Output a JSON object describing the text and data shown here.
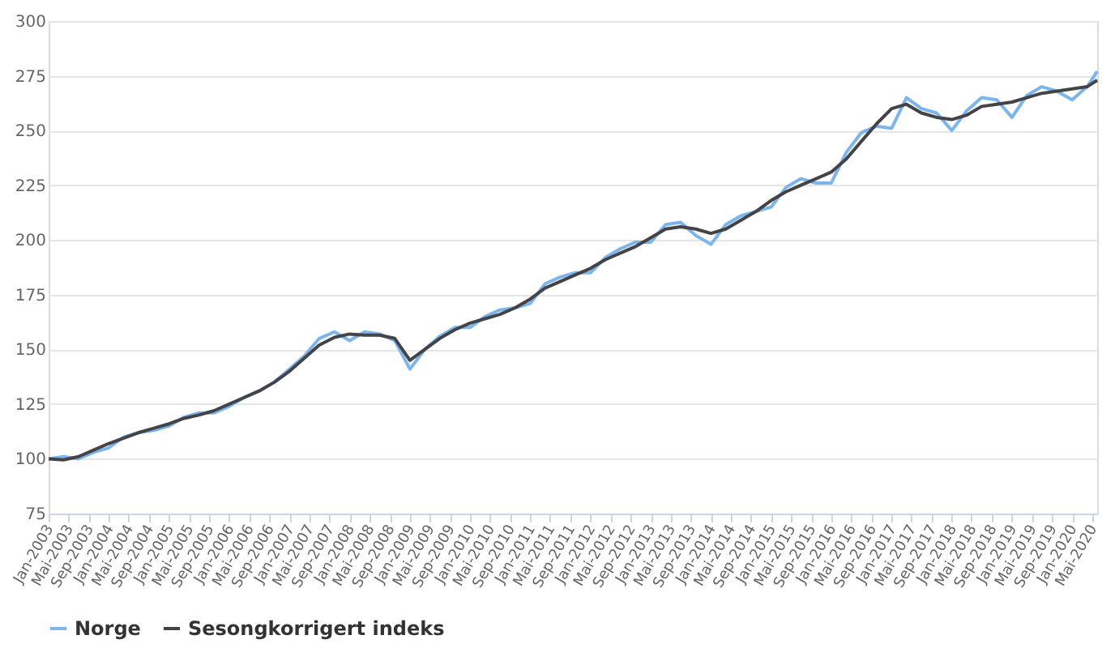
{
  "chart_data": {
    "type": "line",
    "x": [
      "2003-01",
      "2003-04",
      "2003-07",
      "2003-10",
      "2004-01",
      "2004-04",
      "2004-07",
      "2004-10",
      "2005-01",
      "2005-04",
      "2005-07",
      "2005-10",
      "2006-01",
      "2006-04",
      "2006-07",
      "2006-10",
      "2007-01",
      "2007-04",
      "2007-07",
      "2007-10",
      "2008-01",
      "2008-04",
      "2008-07",
      "2008-10",
      "2009-01",
      "2009-04",
      "2009-07",
      "2009-10",
      "2010-01",
      "2010-04",
      "2010-07",
      "2010-10",
      "2011-01",
      "2011-04",
      "2011-07",
      "2011-10",
      "2012-01",
      "2012-04",
      "2012-07",
      "2012-10",
      "2013-01",
      "2013-04",
      "2013-07",
      "2013-10",
      "2014-01",
      "2014-04",
      "2014-07",
      "2014-10",
      "2015-01",
      "2015-04",
      "2015-07",
      "2015-10",
      "2016-01",
      "2016-04",
      "2016-07",
      "2016-10",
      "2017-01",
      "2017-04",
      "2017-07",
      "2017-10",
      "2018-01",
      "2018-04",
      "2018-07",
      "2018-10",
      "2019-01",
      "2019-04",
      "2019-07",
      "2019-10",
      "2020-01",
      "2020-04",
      "2020-06"
    ],
    "series": [
      {
        "name": "Norge",
        "color": "#7cb5ec",
        "values": [
          100,
          101,
          100,
          103,
          105,
          110,
          112,
          113,
          115,
          119,
          121,
          121,
          124,
          128,
          131,
          135,
          141,
          147,
          155,
          158,
          154,
          158,
          157,
          154,
          141,
          150,
          156,
          160,
          160,
          165,
          168,
          169,
          171,
          180,
          183,
          185,
          185,
          192,
          196,
          199,
          199,
          207,
          208,
          202,
          198,
          207,
          211,
          213,
          215,
          224,
          228,
          226,
          226,
          240,
          249,
          252,
          251,
          265,
          260,
          258,
          250,
          259,
          265,
          264,
          256,
          266,
          270,
          268,
          264,
          270,
          277
        ]
      },
      {
        "name": "Sesongkorrigert indeks",
        "color": "#434348",
        "values": [
          100,
          99.5,
          101,
          104,
          107,
          109.5,
          112,
          114,
          116,
          118.5,
          120,
          122,
          125,
          128,
          131,
          135,
          140,
          146,
          152,
          155.5,
          157,
          156.5,
          156.5,
          155,
          145,
          150,
          155,
          159,
          162,
          164,
          166,
          169,
          173,
          178,
          181,
          184,
          187,
          191,
          194,
          197,
          201,
          205,
          206,
          205,
          203,
          205,
          209,
          213,
          218,
          222,
          225,
          228,
          231,
          237,
          245,
          253,
          260,
          262,
          258,
          256,
          255,
          257,
          261,
          262,
          263,
          265,
          267,
          268,
          269,
          270,
          273
        ]
      }
    ],
    "xlim": [
      "2003-01",
      "2020-06"
    ],
    "xticks": [
      {
        "value": "2003-01",
        "label": "Jan-2003"
      },
      {
        "value": "2003-05",
        "label": "Mai-2003"
      },
      {
        "value": "2003-09",
        "label": "Sep-2003"
      },
      {
        "value": "2004-01",
        "label": "Jan-2004"
      },
      {
        "value": "2004-05",
        "label": "Mai-2004"
      },
      {
        "value": "2004-09",
        "label": "Sep-2004"
      },
      {
        "value": "2005-01",
        "label": "Jan-2005"
      },
      {
        "value": "2005-05",
        "label": "Mai-2005"
      },
      {
        "value": "2005-09",
        "label": "Sep-2005"
      },
      {
        "value": "2006-01",
        "label": "Jan-2006"
      },
      {
        "value": "2006-05",
        "label": "Mai-2006"
      },
      {
        "value": "2006-09",
        "label": "Sep-2006"
      },
      {
        "value": "2007-01",
        "label": "Jan-2007"
      },
      {
        "value": "2007-05",
        "label": "Mai-2007"
      },
      {
        "value": "2007-09",
        "label": "Sep-2007"
      },
      {
        "value": "2008-01",
        "label": "Jan-2008"
      },
      {
        "value": "2008-05",
        "label": "Mai-2008"
      },
      {
        "value": "2008-09",
        "label": "Sep-2008"
      },
      {
        "value": "2009-01",
        "label": "Jan-2009"
      },
      {
        "value": "2009-05",
        "label": "Mai-2009"
      },
      {
        "value": "2009-09",
        "label": "Sep-2009"
      },
      {
        "value": "2010-01",
        "label": "Jan-2010"
      },
      {
        "value": "2010-05",
        "label": "Mai-2010"
      },
      {
        "value": "2010-09",
        "label": "Sep-2010"
      },
      {
        "value": "2011-01",
        "label": "Jan-2011"
      },
      {
        "value": "2011-05",
        "label": "Mai-2011"
      },
      {
        "value": "2011-09",
        "label": "Sep-2011"
      },
      {
        "value": "2012-01",
        "label": "Jan-2012"
      },
      {
        "value": "2012-05",
        "label": "Mai-2012"
      },
      {
        "value": "2012-09",
        "label": "Sep-2012"
      },
      {
        "value": "2013-01",
        "label": "Jan-2013"
      },
      {
        "value": "2013-05",
        "label": "Mai-2013"
      },
      {
        "value": "2013-09",
        "label": "Sep-2013"
      },
      {
        "value": "2014-01",
        "label": "Jan-2014"
      },
      {
        "value": "2014-05",
        "label": "Mai-2014"
      },
      {
        "value": "2014-09",
        "label": "Sep-2014"
      },
      {
        "value": "2015-01",
        "label": "Jan-2015"
      },
      {
        "value": "2015-05",
        "label": "Mai-2015"
      },
      {
        "value": "2015-09",
        "label": "Sep-2015"
      },
      {
        "value": "2016-01",
        "label": "Jan-2016"
      },
      {
        "value": "2016-05",
        "label": "Mai-2016"
      },
      {
        "value": "2016-09",
        "label": "Sep-2016"
      },
      {
        "value": "2017-01",
        "label": "Jan-2017"
      },
      {
        "value": "2017-05",
        "label": "Mai-2017"
      },
      {
        "value": "2017-09",
        "label": "Sep-2017"
      },
      {
        "value": "2018-01",
        "label": "Jan-2018"
      },
      {
        "value": "2018-05",
        "label": "Mai-2018"
      },
      {
        "value": "2018-09",
        "label": "Sep-2018"
      },
      {
        "value": "2019-01",
        "label": "Jan-2019"
      },
      {
        "value": "2019-05",
        "label": "Mai-2019"
      },
      {
        "value": "2019-09",
        "label": "Sep-2019"
      },
      {
        "value": "2020-01",
        "label": "Jan-2020"
      },
      {
        "value": "2020-05",
        "label": "Mai-2020"
      }
    ],
    "ylim": [
      75,
      300
    ],
    "yticks": [
      75,
      100,
      125,
      150,
      175,
      200,
      225,
      250,
      275,
      300
    ],
    "grid": "y",
    "legend": "bottom",
    "line_style": "solid"
  }
}
